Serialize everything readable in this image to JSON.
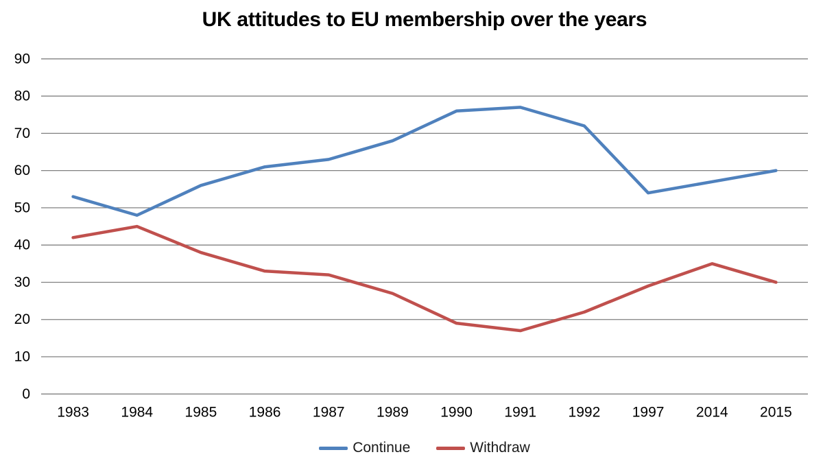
{
  "title": "UK attitudes to EU membership over the years",
  "chart_data": {
    "type": "line",
    "title": "UK attitudes to EU membership over the years",
    "categories": [
      "1983",
      "1984",
      "1985",
      "1986",
      "1987",
      "1989",
      "1990",
      "1991",
      "1992",
      "1997",
      "2014",
      "2015"
    ],
    "series": [
      {
        "name": "Continue",
        "color": "#4F81BD",
        "values": [
          53,
          48,
          56,
          61,
          63,
          68,
          76,
          77,
          72,
          54,
          57,
          60
        ]
      },
      {
        "name": "Withdraw",
        "color": "#C0504D",
        "values": [
          42,
          45,
          38,
          33,
          32,
          27,
          19,
          17,
          22,
          29,
          35,
          30
        ]
      }
    ],
    "xlabel": "",
    "ylabel": "",
    "ylim": [
      0,
      90
    ],
    "yticks": [
      "0",
      "10",
      "20",
      "30",
      "40",
      "50",
      "60",
      "70",
      "80",
      "90"
    ],
    "grid": true,
    "gridline_color": "#808080",
    "tick_label_color": "#000000",
    "legend_position": "bottom"
  }
}
